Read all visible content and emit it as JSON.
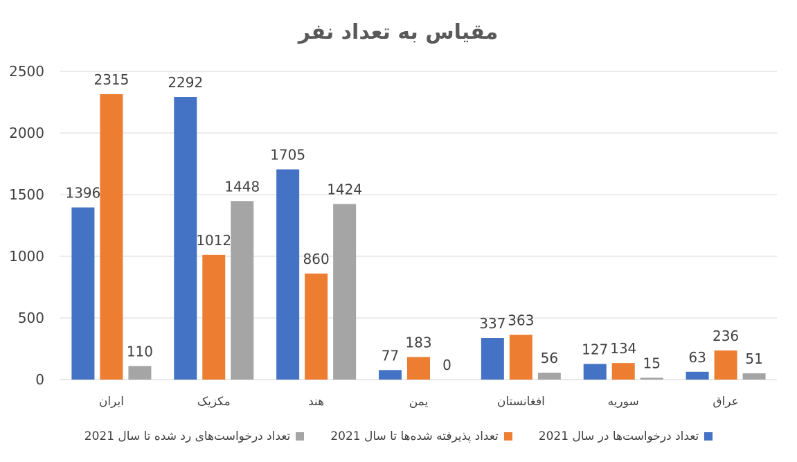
{
  "chart_data": {
    "type": "bar",
    "title": "مقیاس به تعداد نفر",
    "categories": [
      "ایران",
      "مکزیک",
      "هند",
      "یمن",
      "افغانستان",
      "سوریه",
      "عراق"
    ],
    "series": [
      {
        "name": "تعداد درخواست‌ها در سال 2021",
        "color": "#4472c4",
        "values": [
          1396,
          2292,
          1705,
          77,
          337,
          127,
          63
        ]
      },
      {
        "name": "تعداد پذیرفته شده‌ها تا سال 2021",
        "color": "#ed7d31",
        "values": [
          2315,
          1012,
          860,
          183,
          363,
          134,
          236
        ]
      },
      {
        "name": "تعداد درخواست‌های رد شده تا سال 2021",
        "color": "#a5a5a5",
        "values": [
          110,
          1448,
          1424,
          0,
          56,
          15,
          51
        ]
      }
    ],
    "ylim": [
      0,
      2500
    ],
    "yticks": [
      0,
      500,
      1000,
      1500,
      2000,
      2500
    ],
    "grid": true,
    "legend_position": "bottom",
    "data_labels": true
  }
}
